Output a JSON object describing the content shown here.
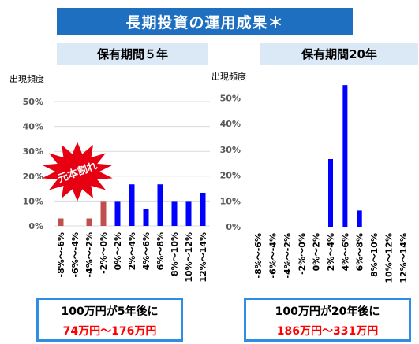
{
  "banner": {
    "title": "長期投資の運用成果＊"
  },
  "panels": {
    "left_title": "保有期間５年",
    "right_title": "保有期間20年"
  },
  "badge": {
    "text": "元本割れ",
    "color": "#e60012"
  },
  "results": {
    "left": {
      "line1": "100万円が5年後に",
      "line2": "74万円～176万円"
    },
    "right": {
      "line1": "100万円が20年後に",
      "line2": "186万円～331万円"
    }
  },
  "colors": {
    "negative": "#c0504d",
    "positive": "#0000ff",
    "accent": "#1f6fc1",
    "highlight": "#ff0000"
  },
  "chart_data": [
    {
      "type": "bar",
      "title": "保有期間５年",
      "ylabel": "出現頻度",
      "ylim": [
        0,
        50
      ],
      "yticks": [
        "0%",
        "10%",
        "20%",
        "30%",
        "40%",
        "50%"
      ],
      "grid": true,
      "categories": [
        "-8%～-6%",
        "-6%～-4%",
        "-4%～-2%",
        "-2%～0%",
        "0%～2%",
        "2%～4%",
        "4%～6%",
        "6%～8%",
        "8%～10%",
        "10%～12%",
        "12%～14%"
      ],
      "values": [
        3,
        0,
        3,
        10,
        10,
        16.7,
        6.7,
        16.7,
        10,
        10,
        13.3
      ]
    },
    {
      "type": "bar",
      "title": "保有期間20年",
      "ylabel": "出現頻度",
      "ylim": [
        0,
        55
      ],
      "yticks": [
        "0%",
        "10%",
        "20%",
        "30%",
        "40%",
        "50%"
      ],
      "grid": false,
      "categories": [
        "-8%～-6%",
        "-6%～-4%",
        "-4%～-2%",
        "-2%～0%",
        "0%～2%",
        "2%～4%",
        "4%～6%",
        "6%～8%",
        "8%～10%",
        "10%～12%",
        "12%～14%"
      ],
      "values": [
        0,
        0,
        0,
        0,
        0,
        26.3,
        55,
        6.3,
        0,
        0,
        0
      ]
    }
  ]
}
